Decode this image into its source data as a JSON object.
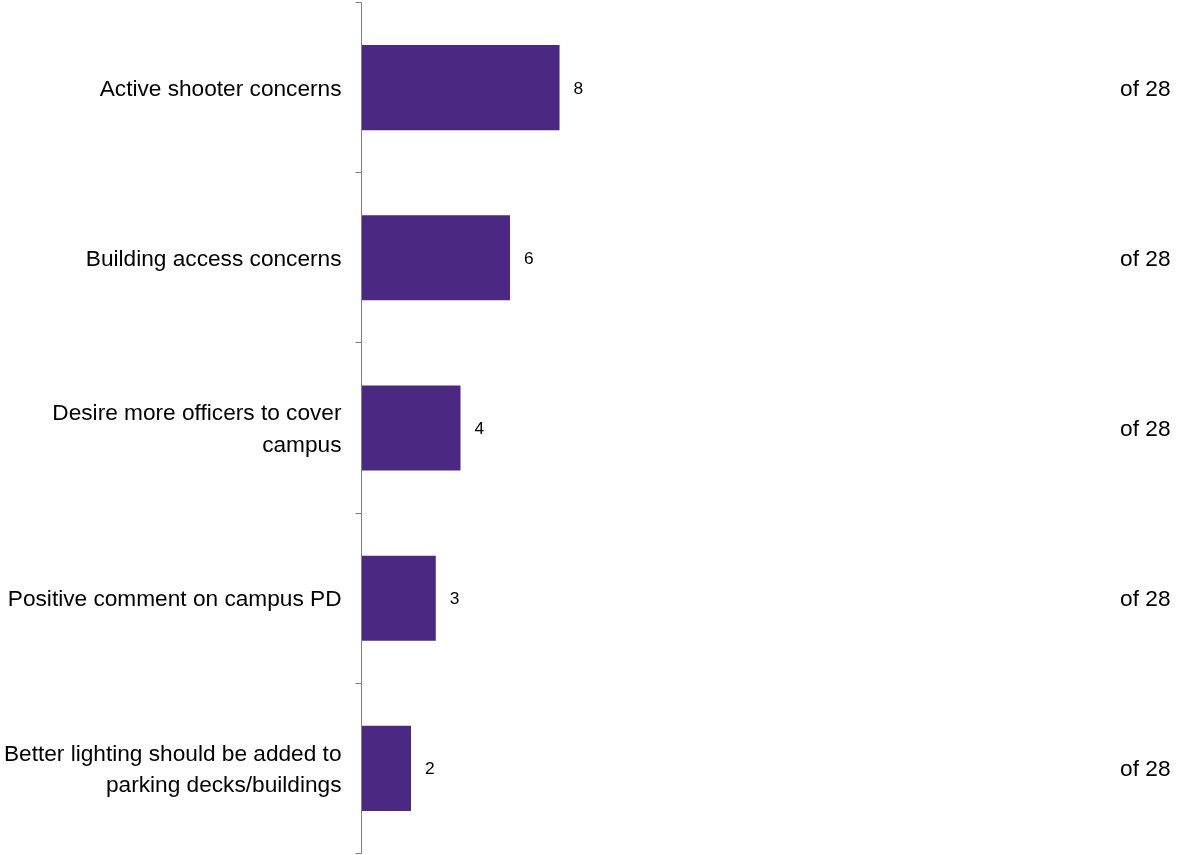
{
  "chart_data": {
    "type": "bar",
    "orientation": "horizontal",
    "categories": [
      "Active shooter concerns",
      "Building access concerns",
      "Desire more officers to cover campus",
      "Positive comment on campus PD",
      "Better lighting should be added to parking decks/buildings"
    ],
    "values": [
      8,
      6,
      4,
      3,
      2
    ],
    "color": "#4b2882",
    "data_labels": true,
    "grid": false,
    "annotations": [
      "of 28",
      "of 28",
      "of 28",
      "of 28",
      "of 28"
    ]
  }
}
